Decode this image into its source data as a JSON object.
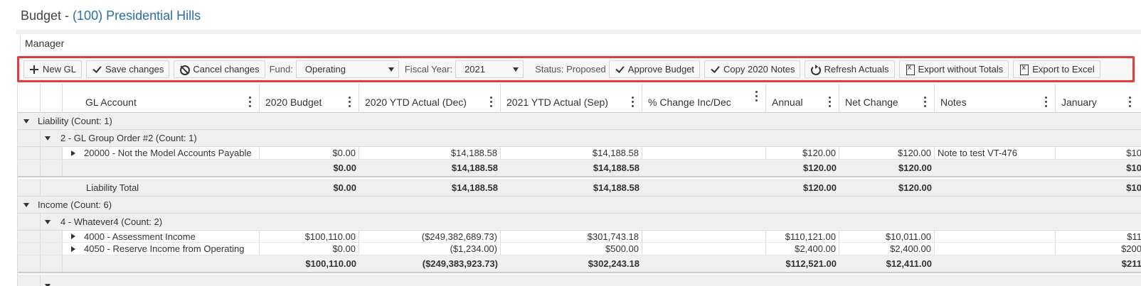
{
  "page": {
    "title_prefix": "Budget - ",
    "title_property": "(100) Presidential Hills",
    "section_label": "Manager"
  },
  "toolbar": {
    "new_gl": "New GL",
    "save_changes": "Save changes",
    "cancel_changes": "Cancel changes",
    "fund_label": "Fund:",
    "fund_value": "Operating",
    "fiscal_year_label": "Fiscal Year:",
    "fiscal_year_value": "2021",
    "status_label": "Status: Proposed",
    "approve_budget": "Approve Budget",
    "copy_notes": "Copy 2020 Notes",
    "refresh_actuals": "Refresh Actuals",
    "export_without_totals": "Export without Totals",
    "export_to_excel": "Export to Excel"
  },
  "columns": [
    "GL Account",
    "2020 Budget",
    "2020 YTD Actual (Dec)",
    "2021 YTD Actual (Sep)",
    "% Change Inc/Dec",
    "Annual",
    "Net Change",
    "Notes",
    "January"
  ],
  "groups": {
    "liability": {
      "label": "Liability (Count: 1)",
      "subgroup_label": "2 - GL Group Order #2 (Count: 1)",
      "rows": [
        {
          "account": "20000 - Not the Model Accounts Payable",
          "budget2020": "$0.00",
          "ytd2020": "$14,188.58",
          "ytd2021": "$14,188.58",
          "pct": "",
          "annual": "$120.00",
          "net": "$120.00",
          "notes": "Note to test VT-476",
          "jan": "$10"
        }
      ],
      "subtotal": {
        "budget2020": "$0.00",
        "ytd2020": "$14,188.58",
        "ytd2021": "$14,188.58",
        "annual": "$120.00",
        "net": "$120.00",
        "jan": "$10"
      },
      "total_label": "Liability Total",
      "total": {
        "budget2020": "$0.00",
        "ytd2020": "$14,188.58",
        "ytd2021": "$14,188.58",
        "annual": "$120.00",
        "net": "$120.00",
        "jan": "$10"
      }
    },
    "income": {
      "label": "Income (Count: 6)",
      "subgroup_label": "4 - Whatever4 (Count: 2)",
      "rows": [
        {
          "account": "4000 - Assessment Income",
          "budget2020": "$100,110.00",
          "ytd2020": "($249,382,689.73)",
          "ytd2021": "$301,743.18",
          "pct": "",
          "annual": "$110,121.00",
          "net": "$10,011.00",
          "notes": "",
          "jan": "$11"
        },
        {
          "account": "4050 - Reserve Income from Operating",
          "budget2020": "$0.00",
          "ytd2020": "($1,234.00)",
          "ytd2021": "$500.00",
          "pct": "",
          "annual": "$2,400.00",
          "net": "$2,400.00",
          "notes": "",
          "jan": "$200"
        }
      ],
      "subtotal": {
        "budget2020": "$100,110.00",
        "ytd2020": "($249,383,923.73)",
        "ytd2021": "$302,243.18",
        "annual": "$112,521.00",
        "net": "$12,411.00",
        "jan": "$211"
      }
    }
  }
}
